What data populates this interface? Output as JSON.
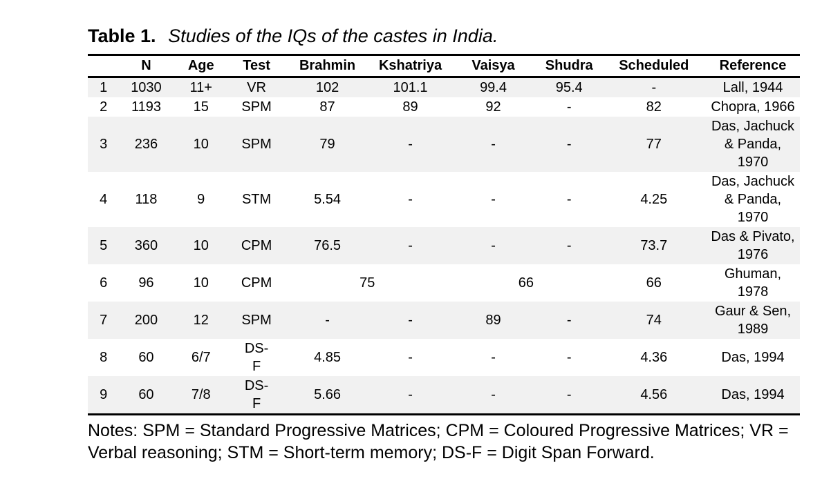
{
  "title": {
    "label": "Table 1.",
    "caption": "Studies of the IQs of the castes in India."
  },
  "table": {
    "row_shade_color": "#f1f1f1",
    "column_widths_percent": [
      4.4,
      7.6,
      7.8,
      7.8,
      12.1,
      11.2,
      12.1,
      9.2,
      14.6,
      13.2
    ],
    "columns": [
      "",
      "N",
      "Age",
      "Test",
      "Brahmin",
      "Kshatriya",
      "Vaisya",
      "Shudra",
      "Scheduled",
      "Reference"
    ],
    "rows": [
      {
        "shaded": true,
        "cells": [
          "1",
          "1030",
          "11+",
          "VR",
          "102",
          "101.1",
          "99.4",
          "95.4",
          "-",
          "Lall, 1944"
        ]
      },
      {
        "shaded": false,
        "cells": [
          "2",
          "1193",
          "15",
          "SPM",
          "87",
          "89",
          "92",
          "-",
          "82",
          "Chopra, 1966"
        ]
      },
      {
        "shaded": true,
        "cells": [
          "3",
          "236",
          "10",
          "SPM",
          "79",
          "-",
          "-",
          "-",
          "77",
          "Das, Jachuck\n& Panda, 1970"
        ]
      },
      {
        "shaded": false,
        "cells": [
          "4",
          "118",
          "9",
          "STM",
          "5.54",
          "-",
          "-",
          "-",
          "4.25",
          "Das, Jachuck\n& Panda, 1970"
        ]
      },
      {
        "shaded": true,
        "cells": [
          "5",
          "360",
          "10",
          "CPM",
          "76.5",
          "-",
          "-",
          "-",
          "73.7",
          "Das & Pivato,\n1976"
        ]
      },
      {
        "shaded": false,
        "cells": [
          "6",
          "96",
          "10",
          "CPM",
          {
            "text": "75",
            "span": 2
          },
          {
            "text": "66",
            "span": 2
          },
          "66",
          "Ghuman, 1978"
        ]
      },
      {
        "shaded": true,
        "cells": [
          "7",
          "200",
          "12",
          "SPM",
          "-",
          "-",
          "89",
          "-",
          "74",
          "Gaur & Sen,\n1989"
        ]
      },
      {
        "shaded": false,
        "cells": [
          "8",
          "60",
          {
            "text": "6/7",
            "cls": "vbottom"
          },
          {
            "text": "DS-\nF"
          },
          "4.85",
          "-",
          "-",
          "-",
          "4.36",
          "Das, 1994"
        ]
      },
      {
        "shaded": true,
        "cells": [
          "9",
          "60",
          "7/8",
          {
            "text": "DS-\nF"
          },
          "5.66",
          "-",
          "-",
          "-",
          "4.56",
          "Das, 1994"
        ]
      }
    ]
  },
  "notes": "Notes: SPM = Standard Progressive Matrices; CPM = Coloured Progressive Matrices; VR = Verbal reasoning; STM = Short-term memory; DS-F = Digit Span Forward."
}
